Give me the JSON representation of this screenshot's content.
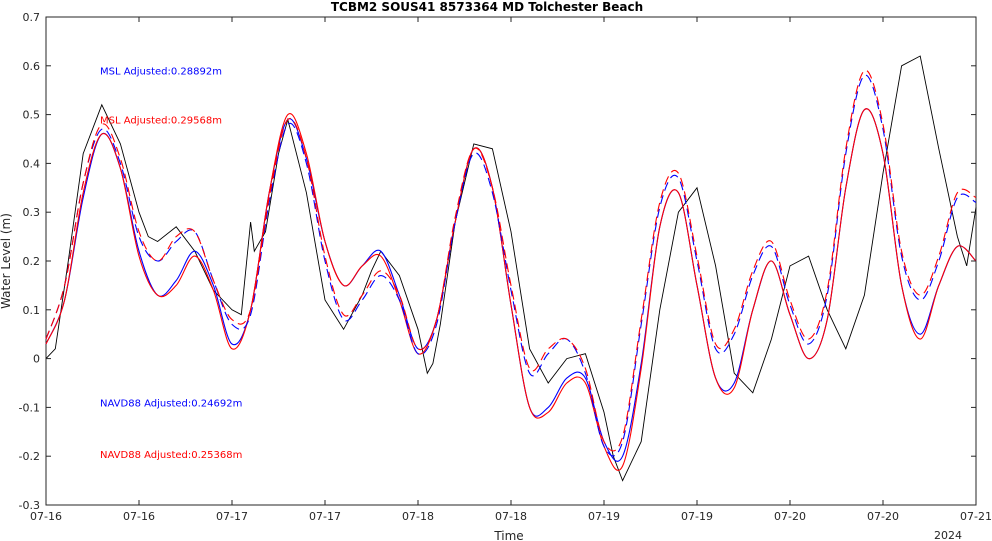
{
  "chart_data": {
    "type": "line",
    "title": "TCBM2 SOUS41 8573364 MD Tolchester Beach",
    "xlabel": "Time",
    "ylabel": "Water Level (m)",
    "xlim": [
      0,
      5
    ],
    "ylim": [
      -0.3,
      0.7
    ],
    "yticks": [
      -0.3,
      -0.2,
      -0.1,
      0,
      0.1,
      0.2,
      0.3,
      0.4,
      0.5,
      0.6,
      0.7
    ],
    "xticks": [
      0,
      0.5,
      1,
      1.5,
      2,
      2.5,
      3,
      3.5,
      4,
      4.5,
      5
    ],
    "xtick_labels": [
      "07-16",
      "07-16",
      "07-17",
      "07-17",
      "07-18",
      "07-18",
      "07-19",
      "07-19",
      "07-20",
      "07-20",
      "07-21"
    ],
    "x_secondary_label": "2024",
    "x_units": "days from 07-16 00:00",
    "grid": false,
    "annotations": [
      {
        "text": "MSL Adjusted:0.28892m",
        "color": "#0000ff",
        "y": 0.59
      },
      {
        "text": "MSL Adjusted:0.29568m",
        "color": "#ff0000",
        "y": 0.49
      },
      {
        "text": "NAVD88 Adjusted:0.24692m",
        "color": "#0000ff",
        "y": -0.09
      },
      {
        "text": "NAVD88 Adjusted:0.25368m",
        "color": "#ff0000",
        "y": -0.195
      }
    ],
    "series": [
      {
        "color": "#000000",
        "style": "solid",
        "x": [
          0,
          0.05,
          0.12,
          0.2,
          0.3,
          0.4,
          0.5,
          0.55,
          0.6,
          0.7,
          0.8,
          0.9,
          1.0,
          1.05,
          1.1,
          1.12,
          1.18,
          1.25,
          1.3,
          1.4,
          1.5,
          1.6,
          1.7,
          1.75,
          1.8,
          1.9,
          2.0,
          2.05,
          2.08,
          2.12,
          2.2,
          2.3,
          2.4,
          2.5,
          2.6,
          2.7,
          2.8,
          2.9,
          3.0,
          3.05,
          3.1,
          3.2,
          3.3,
          3.4,
          3.5,
          3.6,
          3.7,
          3.8,
          3.9,
          4.0,
          4.1,
          4.2,
          4.3,
          4.4,
          4.5,
          4.6,
          4.7,
          4.8,
          4.9,
          4.95,
          5.0
        ],
        "y": [
          0.0,
          0.02,
          0.2,
          0.42,
          0.52,
          0.44,
          0.3,
          0.25,
          0.24,
          0.27,
          0.22,
          0.14,
          0.1,
          0.09,
          0.28,
          0.22,
          0.26,
          0.42,
          0.49,
          0.34,
          0.12,
          0.06,
          0.13,
          0.18,
          0.22,
          0.17,
          0.06,
          -0.03,
          -0.01,
          0.07,
          0.28,
          0.44,
          0.43,
          0.26,
          0.02,
          -0.05,
          0.0,
          0.01,
          -0.11,
          -0.2,
          -0.25,
          -0.17,
          0.1,
          0.3,
          0.35,
          0.19,
          -0.03,
          -0.07,
          0.04,
          0.19,
          0.21,
          0.1,
          0.02,
          0.13,
          0.38,
          0.6,
          0.62,
          0.43,
          0.25,
          0.19,
          0.31
        ]
      },
      {
        "color": "#0000ff",
        "style": "solid",
        "x": [
          0,
          0.1,
          0.2,
          0.3,
          0.4,
          0.5,
          0.6,
          0.7,
          0.8,
          0.9,
          1.0,
          1.1,
          1.2,
          1.3,
          1.4,
          1.5,
          1.6,
          1.7,
          1.8,
          1.9,
          2.0,
          2.1,
          2.2,
          2.3,
          2.4,
          2.5,
          2.6,
          2.7,
          2.8,
          2.9,
          3.0,
          3.1,
          3.2,
          3.3,
          3.4,
          3.5,
          3.6,
          3.7,
          3.8,
          3.9,
          4.0,
          4.1,
          4.2,
          4.3,
          4.4,
          4.5,
          4.6,
          4.7,
          4.8,
          4.9,
          5.0
        ],
        "y": [
          0.03,
          0.12,
          0.33,
          0.46,
          0.39,
          0.22,
          0.13,
          0.16,
          0.22,
          0.15,
          0.03,
          0.1,
          0.34,
          0.49,
          0.41,
          0.24,
          0.15,
          0.19,
          0.22,
          0.13,
          0.02,
          0.08,
          0.28,
          0.43,
          0.35,
          0.11,
          -0.1,
          -0.1,
          -0.04,
          -0.04,
          -0.17,
          -0.2,
          -0.01,
          0.27,
          0.34,
          0.15,
          -0.04,
          -0.05,
          0.1,
          0.2,
          0.09,
          0.0,
          0.08,
          0.35,
          0.51,
          0.42,
          0.15,
          0.05,
          0.15,
          0.23,
          0.2
        ]
      },
      {
        "color": "#ff0000",
        "style": "solid",
        "x": [
          0,
          0.1,
          0.2,
          0.3,
          0.4,
          0.5,
          0.6,
          0.7,
          0.8,
          0.9,
          1.0,
          1.1,
          1.2,
          1.3,
          1.4,
          1.5,
          1.6,
          1.7,
          1.8,
          1.9,
          2.0,
          2.1,
          2.2,
          2.3,
          2.4,
          2.5,
          2.6,
          2.7,
          2.8,
          2.9,
          3.0,
          3.1,
          3.2,
          3.3,
          3.4,
          3.5,
          3.6,
          3.7,
          3.8,
          3.9,
          4.0,
          4.1,
          4.2,
          4.3,
          4.4,
          4.5,
          4.6,
          4.7,
          4.8,
          4.9,
          5.0
        ],
        "y": [
          0.03,
          0.12,
          0.34,
          0.46,
          0.39,
          0.21,
          0.13,
          0.15,
          0.21,
          0.14,
          0.02,
          0.1,
          0.34,
          0.5,
          0.42,
          0.24,
          0.15,
          0.19,
          0.21,
          0.12,
          0.01,
          0.08,
          0.28,
          0.43,
          0.35,
          0.11,
          -0.1,
          -0.11,
          -0.05,
          -0.05,
          -0.18,
          -0.22,
          -0.02,
          0.27,
          0.34,
          0.15,
          -0.04,
          -0.06,
          0.1,
          0.2,
          0.09,
          0.0,
          0.08,
          0.35,
          0.51,
          0.42,
          0.15,
          0.04,
          0.15,
          0.23,
          0.2
        ]
      },
      {
        "color": "#0000ff",
        "style": "dashed",
        "x": [
          0,
          0.1,
          0.2,
          0.3,
          0.4,
          0.5,
          0.6,
          0.7,
          0.8,
          0.9,
          1.0,
          1.1,
          1.2,
          1.3,
          1.4,
          1.5,
          1.6,
          1.7,
          1.8,
          1.9,
          2.0,
          2.1,
          2.2,
          2.3,
          2.4,
          2.5,
          2.6,
          2.7,
          2.8,
          2.9,
          3.0,
          3.1,
          3.2,
          3.3,
          3.4,
          3.5,
          3.6,
          3.7,
          3.8,
          3.9,
          4.0,
          4.1,
          4.2,
          4.3,
          4.4,
          4.5,
          4.6,
          4.7,
          4.8,
          4.9,
          5.0
        ],
        "y": [
          0.04,
          0.15,
          0.36,
          0.47,
          0.4,
          0.25,
          0.2,
          0.24,
          0.26,
          0.16,
          0.07,
          0.09,
          0.32,
          0.48,
          0.4,
          0.2,
          0.08,
          0.12,
          0.17,
          0.12,
          0.01,
          0.07,
          0.28,
          0.42,
          0.34,
          0.14,
          -0.03,
          0.01,
          0.04,
          -0.03,
          -0.18,
          -0.17,
          0.07,
          0.31,
          0.37,
          0.2,
          0.02,
          0.05,
          0.17,
          0.23,
          0.11,
          0.03,
          0.13,
          0.42,
          0.58,
          0.47,
          0.21,
          0.12,
          0.2,
          0.33,
          0.32
        ]
      },
      {
        "color": "#ff0000",
        "style": "dashed",
        "x": [
          0,
          0.1,
          0.2,
          0.3,
          0.4,
          0.5,
          0.6,
          0.7,
          0.8,
          0.9,
          1.0,
          1.1,
          1.2,
          1.3,
          1.4,
          1.5,
          1.6,
          1.7,
          1.8,
          1.9,
          2.0,
          2.1,
          2.2,
          2.3,
          2.4,
          2.5,
          2.6,
          2.7,
          2.8,
          2.9,
          3.0,
          3.1,
          3.2,
          3.3,
          3.4,
          3.5,
          3.6,
          3.7,
          3.8,
          3.9,
          4.0,
          4.1,
          4.2,
          4.3,
          4.4,
          4.5,
          4.6,
          4.7,
          4.8,
          4.9,
          5.0
        ],
        "y": [
          0.04,
          0.15,
          0.36,
          0.48,
          0.41,
          0.26,
          0.2,
          0.25,
          0.26,
          0.16,
          0.08,
          0.1,
          0.33,
          0.49,
          0.41,
          0.21,
          0.09,
          0.13,
          0.18,
          0.13,
          0.02,
          0.08,
          0.29,
          0.43,
          0.35,
          0.15,
          -0.02,
          0.02,
          0.04,
          -0.02,
          -0.17,
          -0.16,
          0.08,
          0.32,
          0.38,
          0.21,
          0.03,
          0.06,
          0.18,
          0.24,
          0.12,
          0.04,
          0.14,
          0.43,
          0.59,
          0.48,
          0.22,
          0.13,
          0.21,
          0.34,
          0.33
        ]
      }
    ]
  }
}
